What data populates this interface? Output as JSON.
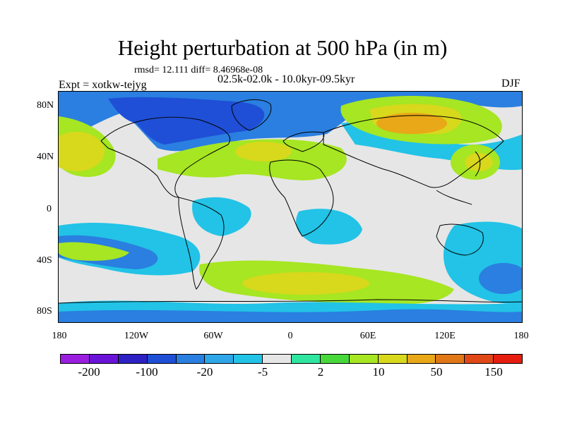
{
  "title": "Height perturbation at 500 hPa (in m)",
  "stats_line": "rmsd= 12.111 diff= 8.46968e-08",
  "experiment_label": "Expt = xotkw-tejyg",
  "period_label": "02.5k-02.0k - 10.0kyr-09.5kyr",
  "season": "DJF",
  "lat_labels": [
    "80N",
    "40N",
    "0",
    "40S",
    "80S"
  ],
  "lon_labels": [
    "180",
    "120W",
    "60W",
    "0",
    "60E",
    "120E",
    "180"
  ],
  "colorbar": {
    "colors": [
      "#9b1ee0",
      "#6a13d8",
      "#2e21c4",
      "#1f4fd6",
      "#2a7fe0",
      "#2ea6e8",
      "#22c3e6",
      "#e6e6e6",
      "#2ee6a0",
      "#48d83c",
      "#a6e622",
      "#d8d81c",
      "#e8a818",
      "#e07818",
      "#e04818",
      "#e61e10"
    ],
    "labels": [
      "-200",
      "-100",
      "-20",
      "-5",
      "2",
      "10",
      "50",
      "150"
    ]
  }
}
